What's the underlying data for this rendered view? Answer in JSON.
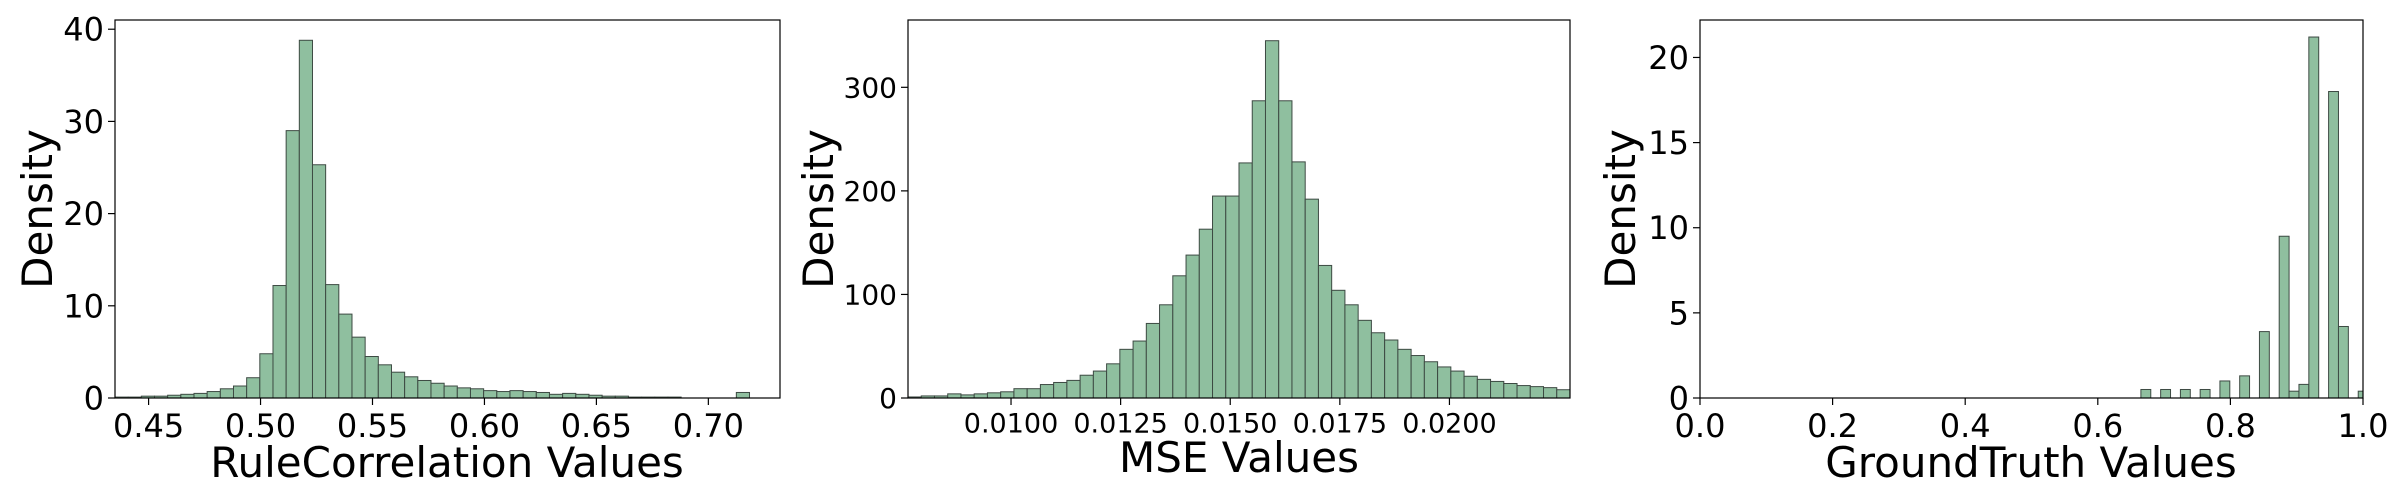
{
  "chart_data": [
    {
      "type": "bar",
      "xlabel": "RuleCorrelation Values",
      "ylabel": "Density",
      "xlim": [
        0.435,
        0.732
      ],
      "ylim": [
        0,
        41
      ],
      "bin_width": 0.00588,
      "bins_start": 0.435,
      "values": [
        0.1,
        0.1,
        0.2,
        0.2,
        0.3,
        0.4,
        0.5,
        0.7,
        1.0,
        1.3,
        2.2,
        4.8,
        12.2,
        29.0,
        38.8,
        25.3,
        12.3,
        9.1,
        6.6,
        4.5,
        3.6,
        2.8,
        2.3,
        1.9,
        1.6,
        1.3,
        1.1,
        1.0,
        0.8,
        0.7,
        0.8,
        0.7,
        0.6,
        0.4,
        0.5,
        0.4,
        0.3,
        0.2,
        0.2,
        0.1,
        0.1,
        0.1,
        0.1,
        0.0,
        0.0,
        0.0,
        0.0,
        0.0,
        0.0,
        0.0,
        0.0,
        0.0,
        0.0,
        0.0,
        0.0,
        0.0,
        0.0,
        0.0,
        0.0,
        0.0
      ],
      "extra_bars": [
        {
          "x": 0.7125,
          "value": 0.6
        }
      ],
      "xticks": [
        "0.45",
        "0.50",
        "0.55",
        "0.60",
        "0.65",
        "0.70"
      ],
      "xtick_values": [
        0.45,
        0.5,
        0.55,
        0.6,
        0.65,
        0.7
      ],
      "yticks": [
        "0",
        "10",
        "20",
        "30",
        "40"
      ],
      "ytick_values": [
        0,
        10,
        20,
        30,
        40
      ]
    },
    {
      "type": "bar",
      "xlabel": "MSE Values",
      "ylabel": "Density",
      "xlim": [
        0.00765,
        0.02275
      ],
      "ylim": [
        0,
        365
      ],
      "bins_start": 0.00765,
      "bin_width": 0.000302,
      "values": [
        1,
        2,
        2,
        4,
        3,
        4,
        5,
        6,
        9,
        9,
        13,
        15,
        17,
        22,
        26,
        33,
        47,
        55,
        72,
        90,
        118,
        138,
        163,
        195,
        195,
        227,
        287,
        345,
        287,
        228,
        192,
        128,
        104,
        90,
        75,
        63,
        56,
        47,
        41,
        35,
        30,
        26,
        21,
        18,
        16,
        14,
        12,
        11,
        10,
        8
      ],
      "xticks": [
        "0.0100",
        "0.0125",
        "0.0150",
        "0.0175",
        "0.0200"
      ],
      "xtick_values": [
        0.01,
        0.0125,
        0.015,
        0.0175,
        0.02
      ],
      "yticks": [
        "0",
        "100",
        "200",
        "300"
      ],
      "ytick_values": [
        0,
        100,
        200,
        300
      ]
    },
    {
      "type": "bar",
      "xlabel": "GroundTruth Values",
      "ylabel": "Density",
      "xlim": [
        0.0,
        1.0
      ],
      "ylim": [
        0,
        22.2
      ],
      "bins_start": 0.665,
      "bin_width": 0.0149,
      "values": [
        0.5,
        0,
        0.5,
        0,
        0.5,
        0,
        0.5,
        0,
        1.0,
        0,
        1.3,
        0,
        3.9,
        0,
        9.5,
        0.4,
        0.8,
        21.2,
        0,
        18.0,
        4.2,
        0,
        0.4,
        0.4
      ],
      "xticks": [
        "0.0",
        "0.2",
        "0.4",
        "0.6",
        "0.8",
        "1.0"
      ],
      "xtick_values": [
        0.0,
        0.2,
        0.4,
        0.6,
        0.8,
        1.0
      ],
      "yticks": [
        "0",
        "5",
        "10",
        "15",
        "20"
      ],
      "ytick_values": [
        0,
        5,
        10,
        15,
        20
      ]
    }
  ],
  "colors": {
    "bar_fill": "#8fbf9f",
    "bar_stroke": "#3d4a43",
    "axis": "#000000"
  }
}
